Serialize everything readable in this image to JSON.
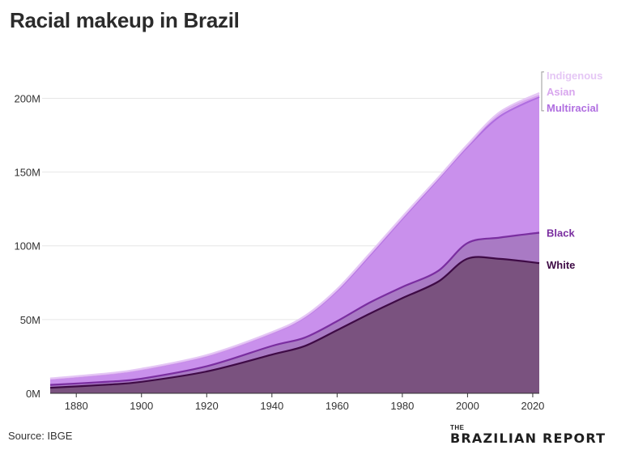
{
  "title": "Racial makeup in Brazil",
  "source": "Source: IBGE",
  "brand": {
    "small": "THE",
    "main": "BRAZILIAN REPORT"
  },
  "chart_data": {
    "type": "area",
    "stacked": true,
    "title": "Racial makeup in Brazil",
    "xlabel": "",
    "ylabel": "",
    "x": [
      1872,
      1890,
      1900,
      1920,
      1940,
      1950,
      1960,
      1970,
      1980,
      1991,
      2000,
      2010,
      2022
    ],
    "xlim": [
      1872,
      2022
    ],
    "ylim": [
      0,
      220
    ],
    "yunit": "M",
    "xticks": [
      "1880",
      "1900",
      "1920",
      "1940",
      "1960",
      "1980",
      "2000",
      "2020"
    ],
    "yticks": [
      "0M",
      "50M",
      "100M",
      "150M",
      "200M"
    ],
    "grid": true,
    "series": [
      {
        "name": "White",
        "color": "#7a527f",
        "line": "#3e0a45",
        "values": [
          3.8,
          5.9,
          7.8,
          14.8,
          26.2,
          32.0,
          42.8,
          54.0,
          64.5,
          75.7,
          91.3,
          91.1,
          88.3
        ]
      },
      {
        "name": "Black",
        "color": "#a97ac4",
        "line": "#7a2ea0",
        "values": [
          1.9,
          2.0,
          2.1,
          3.5,
          5.9,
          5.7,
          6.1,
          7.5,
          7.6,
          7.3,
          10.6,
          14.5,
          20.6
        ]
      },
      {
        "name": "Multiracial",
        "color": "#c990ec",
        "line": "#b06ee0",
        "values": [
          4.0,
          5.3,
          6.3,
          7.0,
          8.7,
          13.8,
          20.7,
          32.0,
          46.3,
          62.3,
          65.3,
          82.3,
          92.1
        ]
      },
      {
        "name": "Asian",
        "color": "#dcb5f2",
        "line": "#d8a6ee",
        "values": [
          0.0,
          0.0,
          0.0,
          0.1,
          0.2,
          0.3,
          0.5,
          0.7,
          0.7,
          0.6,
          0.8,
          2.1,
          0.9
        ]
      },
      {
        "name": "Indigenous",
        "color": "#ead6f6",
        "line": "#e5c7f5",
        "values": [
          0.4,
          0.4,
          0.4,
          0.5,
          0.5,
          0.5,
          0.5,
          0.6,
          0.6,
          0.3,
          0.7,
          0.8,
          1.7
        ]
      }
    ]
  }
}
